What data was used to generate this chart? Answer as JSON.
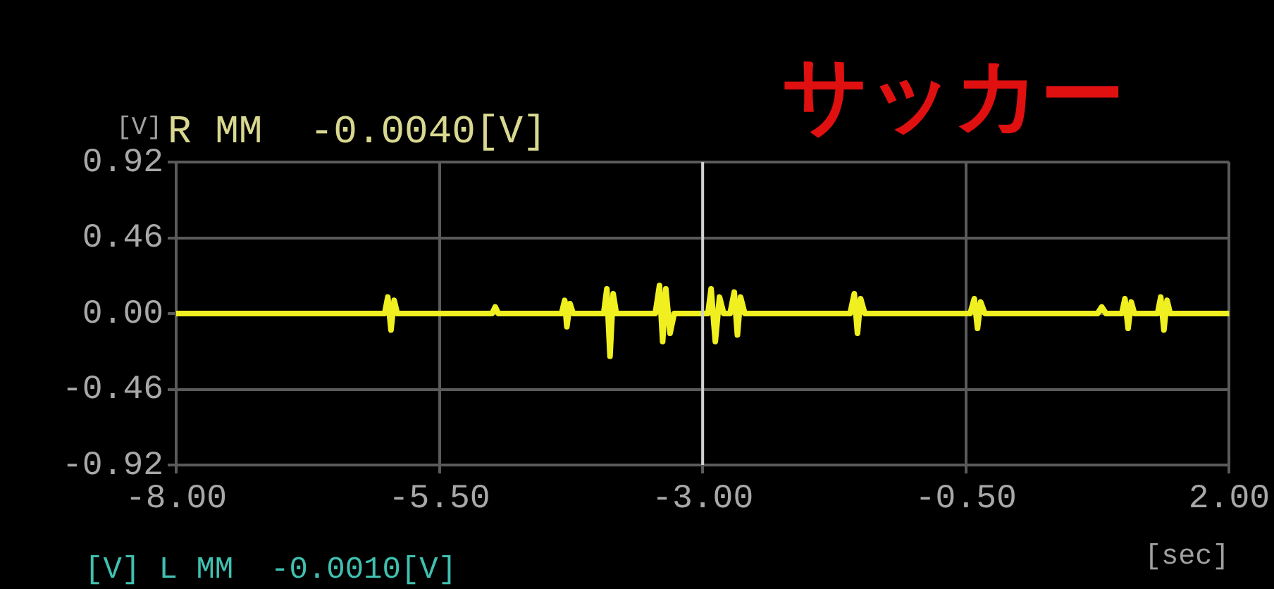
{
  "chart_data": {
    "type": "line",
    "title": "R MM  -0.0040[V]",
    "ylabel": "[V]",
    "xlabel": "[sec]",
    "annotations": [
      "サッカー",
      "[V] L MM  -0.0010[V]"
    ],
    "xlim": [
      -8,
      2
    ],
    "ylim": [
      -0.92,
      0.92
    ],
    "xticks": [
      {
        "value": -8,
        "label": "-8.00"
      },
      {
        "value": -5.5,
        "label": "-5.50"
      },
      {
        "value": -3,
        "label": "-3.00"
      },
      {
        "value": -0.5,
        "label": "-0.50"
      },
      {
        "value": 2,
        "label": "2.00"
      }
    ],
    "yticks": [
      {
        "value": -0.92,
        "label": "-0.92"
      },
      {
        "value": -0.46,
        "label": "-0.46"
      },
      {
        "value": 0,
        "label": "0.00"
      },
      {
        "value": 0.46,
        "label": "0.46"
      },
      {
        "value": 0.92,
        "label": "0.92"
      }
    ],
    "ref_lines": [
      {
        "axis": "x",
        "value": -3,
        "color": "#d0d0d0"
      }
    ],
    "grid": true,
    "marker": "none",
    "line_style": "solid",
    "legend": false,
    "series": [
      {
        "color": "#f0f020",
        "x": [
          -8,
          -6.02,
          -5.99,
          -5.96,
          -5.93,
          -5.9,
          -5.0,
          -4.97,
          -4.94,
          -4.34,
          -4.31,
          -4.29,
          -4.26,
          -4.23,
          -3.94,
          -3.91,
          -3.88,
          -3.85,
          -3.82,
          -3.45,
          -3.41,
          -3.38,
          -3.35,
          -3.31,
          -3.27,
          -2.95,
          -2.92,
          -2.88,
          -2.84,
          -2.8,
          -2.74,
          -2.7,
          -2.67,
          -2.64,
          -2.6,
          -1.6,
          -1.56,
          -1.53,
          -1.5,
          -1.46,
          -0.46,
          -0.42,
          -0.39,
          -0.36,
          -0.32,
          0.75,
          0.79,
          0.83,
          0.98,
          1.01,
          1.04,
          1.07,
          1.1,
          1.32,
          1.35,
          1.38,
          1.41,
          1.44,
          2
        ],
        "values": [
          0,
          0,
          0.1,
          -0.1,
          0.08,
          0,
          0,
          0.04,
          0,
          0,
          0.08,
          -0.08,
          0.06,
          0,
          0,
          0.15,
          -0.26,
          0.12,
          0,
          0,
          0.17,
          -0.17,
          0.15,
          -0.12,
          0,
          0,
          0.15,
          -0.17,
          0.1,
          0,
          0,
          0.13,
          -0.13,
          0.1,
          0,
          0,
          0.12,
          -0.12,
          0.09,
          0,
          0,
          0.09,
          -0.09,
          0.07,
          0,
          0,
          0.04,
          0,
          0,
          0.09,
          -0.09,
          0.07,
          0,
          0,
          0.1,
          -0.1,
          0.08,
          0,
          0
        ]
      }
    ]
  }
}
